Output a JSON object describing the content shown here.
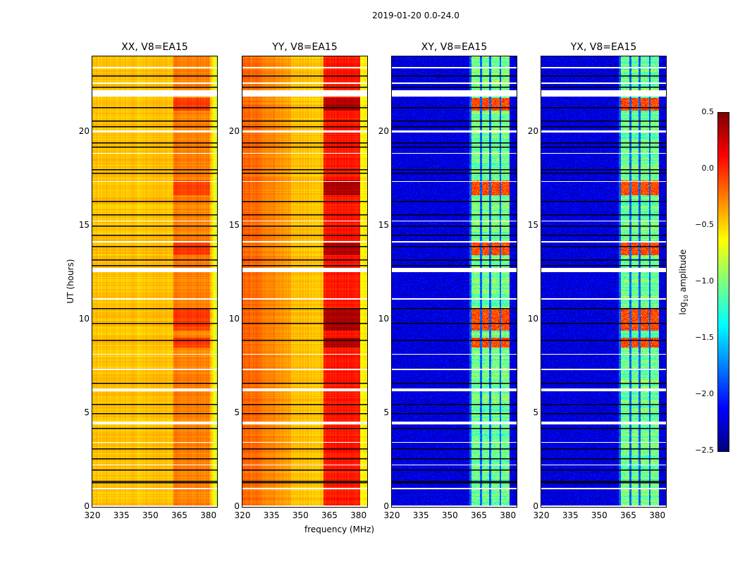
{
  "chart_data": {
    "type": "heatmap",
    "title": "2019-01-20 0.0-24.0",
    "xlabel": "frequency (MHz)",
    "ylabel": "UT (hours)",
    "xlim": [
      320,
      384.5
    ],
    "ylim": [
      0,
      24
    ],
    "xticks": [
      "320",
      "335",
      "350",
      "365",
      "380"
    ],
    "yticks": [
      "0",
      "5",
      "10",
      "15",
      "20"
    ],
    "colorbar": {
      "label": "log10 amplitude",
      "label_main": "log",
      "label_sub": "10",
      "label_rest": " amplitude",
      "range": [
        -2.5,
        0.5
      ],
      "ticks": [
        "0.5",
        "0.0",
        "−0.5",
        "−1.0",
        "−1.5",
        "−2.0",
        "−2.5"
      ],
      "colormap": "jet"
    },
    "panels": [
      {
        "title": "XX, V8=EA15",
        "kind": "parallel",
        "base_low": -0.45,
        "base_high": -0.25,
        "edge_slope": -0.3,
        "peak": -0.05
      },
      {
        "title": "YY, V8=EA15",
        "kind": "parallel_yy",
        "base_low": -0.15,
        "base_mid": -0.45,
        "base_high": 0.05,
        "peak": 0.35
      },
      {
        "title": "XY, V8=EA15",
        "kind": "cross",
        "base": -2.4,
        "band_level": -1.05,
        "peak": 0.1
      },
      {
        "title": "YX, V8=EA15",
        "kind": "cross",
        "base": -2.4,
        "band_level": -1.05,
        "peak": 0.1
      }
    ],
    "cross_bands_mhz": [
      [
        361,
        365.4
      ],
      [
        366.5,
        370.2
      ],
      [
        371.3,
        375.7
      ],
      [
        376.4,
        380.8
      ]
    ],
    "bright_hours": [
      [
        9.4,
        10.6
      ],
      [
        13.4,
        14.1
      ],
      [
        21.1,
        21.8
      ],
      [
        16.6,
        17.4
      ],
      [
        8.5,
        9.0
      ]
    ],
    "flagged_white_hours": [
      [
        23.35,
        23.45
      ],
      [
        21.85,
        22.2
      ],
      [
        19.95,
        20.05
      ],
      [
        12.5,
        12.75
      ],
      [
        6.15,
        6.3
      ],
      [
        4.4,
        4.55
      ],
      [
        0.0,
        0.06
      ],
      [
        22.55,
        22.6
      ],
      [
        18.8,
        18.85
      ],
      [
        17.3,
        17.35
      ],
      [
        15.2,
        15.25
      ],
      [
        14.1,
        14.15
      ],
      [
        11.05,
        11.1
      ],
      [
        8.1,
        8.15
      ],
      [
        7.3,
        7.35
      ],
      [
        3.4,
        3.45
      ],
      [
        2.2,
        2.25
      ],
      [
        0.95,
        1.0
      ]
    ],
    "black_line_hours": [
      23.0,
      22.4,
      21.3,
      20.6,
      20.3,
      19.4,
      19.2,
      18.0,
      17.8,
      16.3,
      15.6,
      15.0,
      14.5,
      13.9,
      13.2,
      12.9,
      10.6,
      9.8,
      8.9,
      6.6,
      5.5,
      5.0,
      4.2,
      3.1,
      2.6,
      2.0,
      1.4,
      1.3
    ]
  }
}
